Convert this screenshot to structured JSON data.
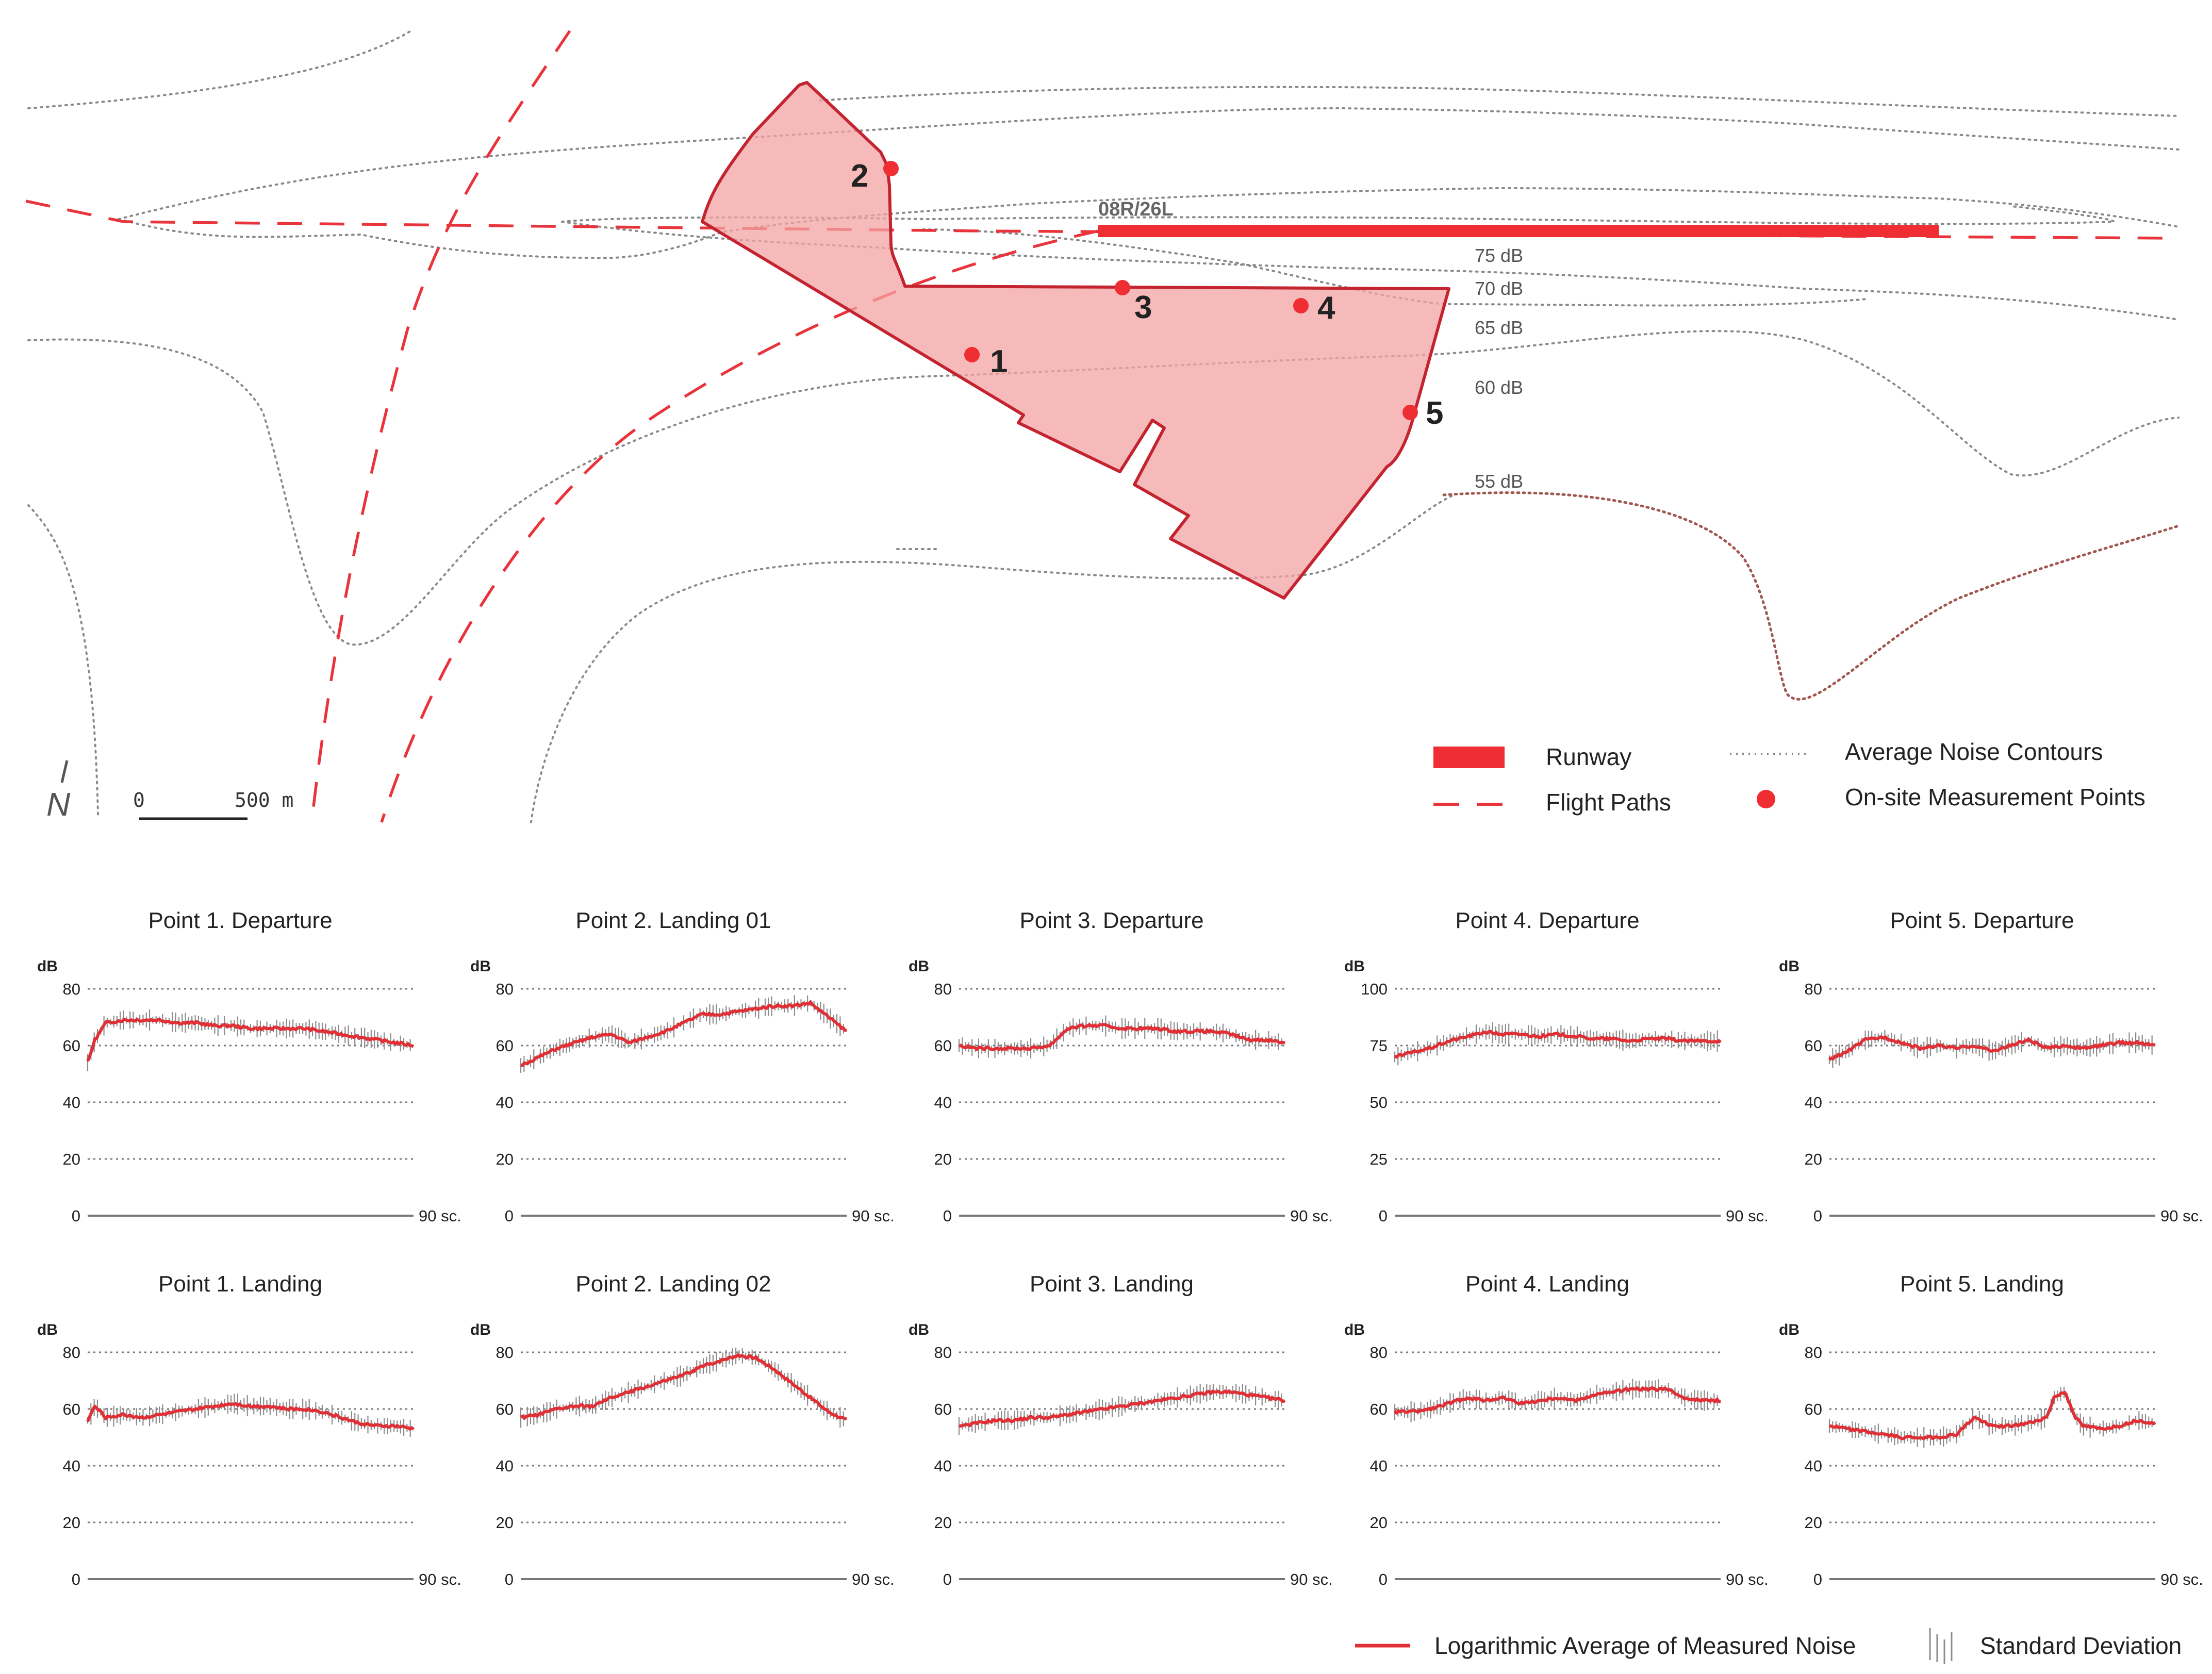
{
  "map": {
    "runway_label": "08R/26L",
    "contour_labels": [
      "75 dB",
      "70 dB",
      "65 dB",
      "60 dB",
      "55 dB"
    ],
    "measurement_points": [
      "1",
      "2",
      "3",
      "4",
      "5"
    ],
    "scale": {
      "start": "0",
      "end": "500 m"
    },
    "north_label": "N",
    "colors": {
      "runway": "#ee2e32",
      "flight_path": "#e8343a",
      "site_fill": "#f4a3a4",
      "site_stroke": "#c4242f",
      "contour": "#8a8a8a"
    }
  },
  "legend": {
    "runway": "Runway",
    "flight_paths": "Flight Paths",
    "contours": "Average Noise Contours",
    "measurement_points": "On-site Measurement Points"
  },
  "charts_legend": {
    "average": "Logarithmic Average of Measured Noise",
    "std_dev": "Standard Deviation"
  },
  "chart_data": [
    {
      "type": "line",
      "title": "Point 1. Departure",
      "ylabel": "dB",
      "xlabel": "90 sc.",
      "xlim": [
        0,
        90
      ],
      "ylim": [
        0,
        80
      ],
      "yticks": [
        0,
        20,
        40,
        60,
        80
      ],
      "x": [
        0,
        2,
        5,
        10,
        15,
        20,
        25,
        30,
        35,
        40,
        45,
        50,
        55,
        60,
        65,
        70,
        75,
        80,
        85,
        90
      ],
      "series": [
        {
          "name": "Logarithmic Average of Measured Noise",
          "values": [
            54,
            62,
            68,
            69,
            69,
            69,
            68,
            68,
            67,
            67,
            66,
            66,
            66,
            66,
            65,
            64,
            63,
            62,
            61,
            60
          ]
        }
      ]
    },
    {
      "type": "line",
      "title": "Point 2. Landing 01",
      "ylabel": "dB",
      "xlabel": "90 sc.",
      "xlim": [
        0,
        90
      ],
      "ylim": [
        0,
        80
      ],
      "yticks": [
        0,
        20,
        40,
        60,
        80
      ],
      "x": [
        0,
        5,
        10,
        15,
        20,
        25,
        30,
        35,
        40,
        45,
        50,
        55,
        60,
        65,
        70,
        75,
        80,
        85,
        90
      ],
      "series": [
        {
          "name": "Logarithmic Average of Measured Noise",
          "values": [
            53,
            56,
            59,
            61,
            63,
            64,
            61,
            63,
            65,
            68,
            71,
            71,
            72,
            73,
            74,
            74,
            75,
            70,
            65
          ]
        }
      ]
    },
    {
      "type": "line",
      "title": "Point 3. Departure",
      "ylabel": "dB",
      "xlabel": "90 sc.",
      "xlim": [
        0,
        90
      ],
      "ylim": [
        0,
        80
      ],
      "yticks": [
        0,
        20,
        40,
        60,
        80
      ],
      "x": [
        0,
        5,
        10,
        15,
        20,
        25,
        30,
        35,
        40,
        45,
        50,
        55,
        60,
        65,
        70,
        75,
        80,
        85,
        90
      ],
      "series": [
        {
          "name": "Logarithmic Average of Measured Noise",
          "values": [
            60,
            59,
            59,
            59,
            59,
            60,
            66,
            67,
            67,
            66,
            66,
            66,
            65,
            65,
            65,
            64,
            62,
            62,
            61
          ]
        }
      ]
    },
    {
      "type": "line",
      "title": "Point 4. Departure",
      "ylabel": "dB",
      "xlabel": "90 sc.",
      "xlim": [
        0,
        90
      ],
      "ylim": [
        0,
        100
      ],
      "yticks": [
        0,
        25,
        50,
        75,
        100
      ],
      "x": [
        0,
        5,
        10,
        15,
        20,
        25,
        30,
        35,
        40,
        45,
        50,
        55,
        60,
        65,
        70,
        75,
        80,
        85,
        90
      ],
      "series": [
        {
          "name": "Logarithmic Average of Measured Noise",
          "values": [
            70,
            72,
            74,
            77,
            79,
            81,
            80,
            80,
            79,
            80,
            79,
            78,
            78,
            77,
            78,
            78,
            77,
            77,
            77
          ]
        }
      ]
    },
    {
      "type": "line",
      "title": "Point 5. Departure",
      "ylabel": "dB",
      "xlabel": "90 sc.",
      "xlim": [
        0,
        90
      ],
      "ylim": [
        0,
        80
      ],
      "yticks": [
        0,
        20,
        40,
        60,
        80
      ],
      "x": [
        0,
        5,
        10,
        15,
        20,
        25,
        30,
        35,
        40,
        45,
        50,
        55,
        60,
        65,
        70,
        75,
        80,
        85,
        90
      ],
      "series": [
        {
          "name": "Logarithmic Average of Measured Noise",
          "values": [
            55,
            58,
            62,
            63,
            61,
            59,
            60,
            59,
            60,
            58,
            60,
            62,
            59,
            60,
            59,
            60,
            61,
            61,
            60
          ]
        }
      ]
    },
    {
      "type": "line",
      "title": "Point 1. Landing",
      "ylabel": "dB",
      "xlabel": "90 sc.",
      "xlim": [
        0,
        90
      ],
      "ylim": [
        0,
        80
      ],
      "yticks": [
        0,
        20,
        40,
        60,
        80
      ],
      "x": [
        0,
        2,
        5,
        10,
        15,
        20,
        25,
        30,
        35,
        40,
        45,
        50,
        55,
        60,
        65,
        70,
        75,
        80,
        85,
        90
      ],
      "series": [
        {
          "name": "Logarithmic Average of Measured Noise",
          "values": [
            56,
            61,
            57,
            58,
            57,
            58,
            59,
            60,
            61,
            62,
            61,
            61,
            60,
            60,
            59,
            57,
            55,
            54,
            54,
            53
          ]
        }
      ]
    },
    {
      "type": "line",
      "title": "Point 2. Landing 02",
      "ylabel": "dB",
      "xlabel": "90 sc.",
      "xlim": [
        0,
        90
      ],
      "ylim": [
        0,
        80
      ],
      "yticks": [
        0,
        20,
        40,
        60,
        80
      ],
      "x": [
        0,
        5,
        10,
        15,
        20,
        25,
        30,
        35,
        40,
        45,
        50,
        55,
        60,
        65,
        70,
        75,
        80,
        85,
        90
      ],
      "series": [
        {
          "name": "Logarithmic Average of Measured Noise",
          "values": [
            57,
            58,
            60,
            61,
            61,
            64,
            66,
            68,
            70,
            72,
            75,
            77,
            79,
            78,
            74,
            69,
            64,
            59,
            56
          ]
        }
      ]
    },
    {
      "type": "line",
      "title": "Point 3. Landing",
      "ylabel": "dB",
      "xlabel": "90 sc.",
      "xlim": [
        0,
        90
      ],
      "ylim": [
        0,
        80
      ],
      "yticks": [
        0,
        20,
        40,
        60,
        80
      ],
      "x": [
        0,
        5,
        10,
        15,
        20,
        25,
        30,
        35,
        40,
        45,
        50,
        55,
        60,
        65,
        70,
        75,
        80,
        85,
        90
      ],
      "series": [
        {
          "name": "Logarithmic Average of Measured Noise",
          "values": [
            54,
            55,
            56,
            56,
            57,
            57,
            58,
            59,
            60,
            61,
            62,
            63,
            64,
            65,
            66,
            66,
            65,
            64,
            63
          ]
        }
      ]
    },
    {
      "type": "line",
      "title": "Point 4. Landing",
      "ylabel": "dB",
      "xlabel": "90 sc.",
      "xlim": [
        0,
        90
      ],
      "ylim": [
        0,
        80
      ],
      "yticks": [
        0,
        20,
        40,
        60,
        80
      ],
      "x": [
        0,
        5,
        10,
        15,
        20,
        25,
        30,
        35,
        40,
        45,
        50,
        55,
        60,
        65,
        70,
        75,
        80,
        85,
        90
      ],
      "series": [
        {
          "name": "Logarithmic Average of Measured Noise",
          "values": [
            59,
            59,
            60,
            62,
            64,
            63,
            64,
            62,
            63,
            64,
            63,
            65,
            66,
            67,
            67,
            67,
            64,
            63,
            63
          ]
        }
      ]
    },
    {
      "type": "line",
      "title": "Point 5. Landing",
      "ylabel": "dB",
      "xlabel": "90 sc.",
      "xlim": [
        0,
        90
      ],
      "ylim": [
        0,
        80
      ],
      "yticks": [
        0,
        20,
        40,
        60,
        80
      ],
      "x": [
        0,
        5,
        10,
        15,
        20,
        25,
        30,
        35,
        40,
        45,
        50,
        55,
        60,
        62,
        65,
        68,
        70,
        75,
        80,
        85,
        90
      ],
      "series": [
        {
          "name": "Logarithmic Average of Measured Noise",
          "values": [
            54,
            53,
            52,
            51,
            50,
            50,
            50,
            51,
            57,
            54,
            54,
            55,
            57,
            64,
            66,
            57,
            54,
            53,
            54,
            56,
            55
          ]
        }
      ]
    }
  ]
}
